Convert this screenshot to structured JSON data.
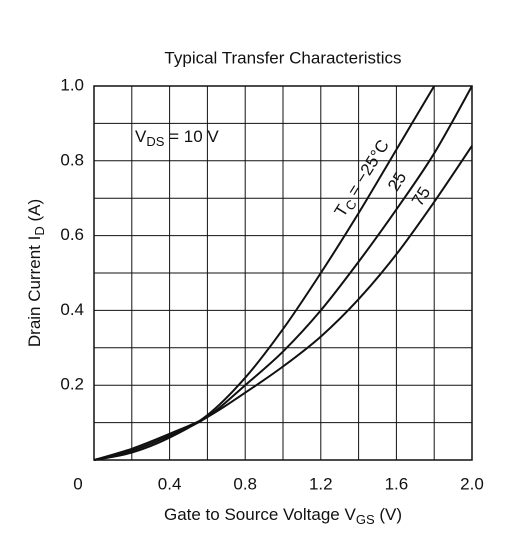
{
  "chart_data": {
    "type": "line",
    "title": "Typical Transfer Characteristics",
    "x_label": {
      "main": "Gate to Source Voltage  V",
      "sub": "GS",
      "rest": "  (V)"
    },
    "y_label": {
      "main": "Drain Current  I",
      "sub": "D",
      "rest": "  (A)"
    },
    "condition": {
      "main": "V",
      "sub": "DS",
      "rest": " = 10 V"
    },
    "curve_prefix": {
      "main": "T",
      "sub": "C",
      "eq": " = "
    },
    "x": [
      0,
      0.2,
      0.4,
      0.6,
      0.8,
      1.0,
      1.2,
      1.4,
      1.6,
      1.8,
      2.0
    ],
    "series": [
      {
        "name": "−25°C",
        "color": "#111111",
        "values": [
          0,
          0.02,
          0.06,
          0.12,
          0.22,
          0.35,
          0.5,
          0.66,
          0.83,
          1.0,
          null
        ]
      },
      {
        "name": "25",
        "color": "#111111",
        "values": [
          0,
          0.025,
          0.065,
          0.115,
          0.2,
          0.29,
          0.4,
          0.53,
          0.67,
          0.82,
          1.0
        ]
      },
      {
        "name": "75",
        "color": "#111111",
        "values": [
          0,
          0.03,
          0.07,
          0.115,
          0.18,
          0.25,
          0.33,
          0.43,
          0.55,
          0.69,
          0.84
        ]
      }
    ],
    "xlim": [
      0,
      2.0
    ],
    "ylim": [
      0,
      1.0
    ],
    "xticks": [
      0,
      0.4,
      0.8,
      1.2,
      1.6,
      {
        "value": 2,
        "label": "2.0"
      }
    ],
    "xminor": [
      0.2,
      0.6,
      1.0,
      1.4,
      1.8
    ],
    "yticks": [
      0.2,
      0.4,
      0.6,
      0.8,
      {
        "value": 1,
        "label": "1.0"
      }
    ],
    "yminor": [
      0.1,
      0.3,
      0.5,
      0.7,
      0.9
    ],
    "grid": true
  }
}
